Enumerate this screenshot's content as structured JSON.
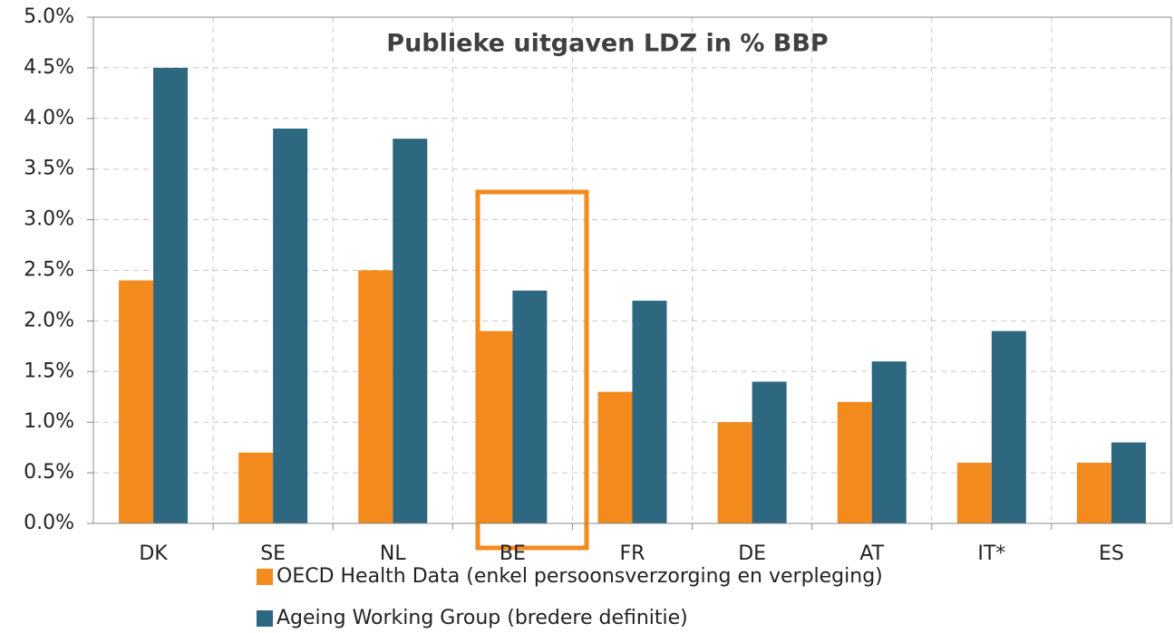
{
  "chart_data": {
    "type": "bar",
    "title": "Publieke uitgaven LDZ in % BBP",
    "categories": [
      "DK",
      "SE",
      "NL",
      "BE",
      "FR",
      "DE",
      "AT",
      "IT*",
      "ES"
    ],
    "series": [
      {
        "name": "OECD Health Data (enkel persoonsverzorging en verpleging)",
        "color": "#f28a1e",
        "values": [
          2.4,
          0.7,
          2.5,
          1.9,
          1.3,
          1.0,
          1.2,
          0.6,
          0.6
        ]
      },
      {
        "name": "Ageing Working Group (bredere definitie)",
        "color": "#2e6780",
        "values": [
          4.5,
          3.9,
          3.8,
          2.3,
          2.2,
          1.4,
          1.6,
          1.9,
          0.8
        ]
      }
    ],
    "ylim": [
      0,
      5
    ],
    "yticks": [
      {
        "value": 0,
        "label": "0.0%"
      },
      {
        "value": 0.5,
        "label": "0.5%"
      },
      {
        "value": 1,
        "label": "1.0%"
      },
      {
        "value": 1.5,
        "label": "1.5%"
      },
      {
        "value": 2,
        "label": "2.0%"
      },
      {
        "value": 2.5,
        "label": "2.5%"
      },
      {
        "value": 3,
        "label": "3.0%"
      },
      {
        "value": 3.5,
        "label": "3.5%"
      },
      {
        "value": 4,
        "label": "4.0%"
      },
      {
        "value": 4.5,
        "label": "4.5%"
      },
      {
        "value": 5,
        "label": "5.0%"
      }
    ],
    "grid": true,
    "legend": "bottom"
  }
}
